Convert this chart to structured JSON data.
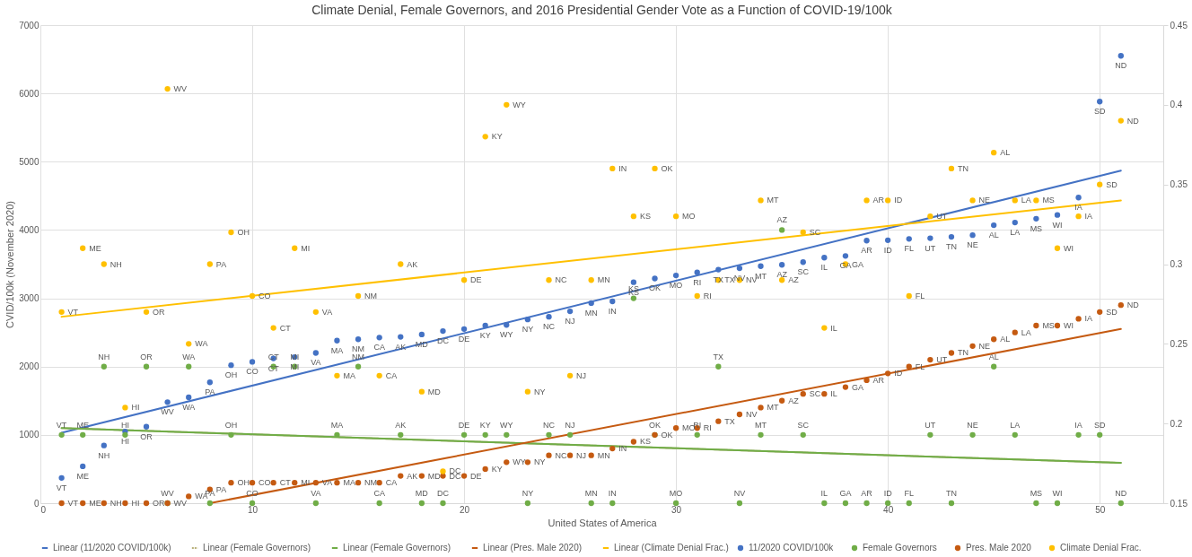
{
  "chart_data": {
    "type": "scatter",
    "title": "Climate Denial, Female Governors, and 2016 Presidential Gender Vote as a Function of COVID-19/100k",
    "xlabel": "United States of America",
    "ylabel": "CVID/100k (November 2020)",
    "x": [
      1,
      2,
      3,
      4,
      5,
      6,
      7,
      8,
      9,
      10,
      11,
      12,
      13,
      14,
      15,
      16,
      17,
      18,
      19,
      20,
      21,
      22,
      23,
      24,
      25,
      26,
      27,
      28,
      29,
      30,
      31,
      32,
      33,
      34,
      35,
      36,
      37,
      38,
      39,
      40,
      41,
      42,
      43,
      44,
      45,
      46,
      47,
      48,
      49,
      50,
      51
    ],
    "xlim": [
      0,
      53
    ],
    "xticks": [
      0,
      10,
      20,
      30,
      40,
      50
    ],
    "ylim": [
      0,
      7000
    ],
    "yticks": [
      0,
      1000,
      2000,
      3000,
      4000,
      5000,
      6000,
      7000
    ],
    "y2lim": [
      0.15,
      0.45
    ],
    "y2ticks": [
      0.15,
      0.2,
      0.25,
      0.3,
      0.35,
      0.4,
      0.45
    ],
    "grid": true,
    "legend": "bottom",
    "marker": "circle",
    "series": [
      {
        "name": "11/2020 COVID/100k",
        "color": "#4472c4",
        "values": [
          370,
          540,
          845,
          1050,
          1120,
          1480,
          1550,
          1770,
          2020,
          2070,
          2120,
          2140,
          2200,
          2380,
          2400,
          2425,
          2435,
          2470,
          2520,
          2550,
          2600,
          2610,
          2690,
          2730,
          2810,
          2930,
          2955,
          3235,
          3290,
          3335,
          3380,
          3420,
          3440,
          3470,
          3490,
          3530,
          3595,
          3620,
          3845,
          3850,
          3870,
          3880,
          3900,
          3925,
          4070,
          4110,
          4165,
          4220,
          4475,
          5880,
          6550
        ],
        "value_labels": [
          "VT",
          "ME",
          "NH",
          "HI",
          "OR",
          "WV",
          "WA",
          "PA",
          "OH",
          "CO",
          "CT",
          "MI",
          "VA",
          "MA",
          "NM",
          "CA",
          "AK",
          "MD",
          "DC",
          "DE",
          "KY",
          "WY",
          "NY",
          "NC",
          "NJ",
          "MN",
          "IN",
          "KS",
          "OK",
          "MO",
          "RI",
          "TX",
          "NV",
          "MT",
          "AZ",
          "SC",
          "IL",
          "GA",
          "AR",
          "ID",
          "FL",
          "UT",
          "TN",
          "NE",
          "AL",
          "LA",
          "MS",
          "WI",
          "IA",
          "SD",
          "ND"
        ]
      },
      {
        "name": "Female Governors",
        "color": "#70ad47",
        "values": [
          1000,
          1000,
          2000,
          1000,
          2000,
          0,
          2000,
          0,
          1000,
          0,
          2000,
          2000,
          0,
          1000,
          2000,
          0,
          1000,
          0,
          0,
          1000,
          1000,
          1000,
          0,
          1000,
          1000,
          0,
          0,
          3000,
          1000,
          0,
          1000,
          2000,
          0,
          1000,
          4000,
          1000,
          0,
          0,
          0,
          0,
          0,
          1000,
          0,
          1000,
          2000,
          1000,
          0,
          0,
          1000,
          1000,
          0
        ],
        "value_labels": [
          "VT",
          "ME",
          "NH",
          "HI",
          "OR",
          "WV",
          "WA",
          "PA",
          "OH",
          "CO",
          "CT",
          "MI",
          "VA",
          "MA",
          "NM",
          "CA",
          "AK",
          "MD",
          "DC",
          "DE",
          "KY",
          "WY",
          "NY",
          "NC",
          "NJ",
          "MN",
          "IN",
          "KS",
          "OK",
          "MO",
          "RI",
          "TX",
          "NV",
          "MT",
          "AZ",
          "SC",
          "IL",
          "GA",
          "AR",
          "ID",
          "FL",
          "UT",
          "TN",
          "NE",
          "AL",
          "LA",
          "MS",
          "WI",
          "IA",
          "SD",
          "ND"
        ]
      },
      {
        "name": "Pres. Male 2020",
        "color": "#c55a11",
        "values": [
          0,
          0,
          0,
          0,
          0,
          0,
          100,
          200,
          300,
          300,
          300,
          300,
          300,
          300,
          300,
          300,
          400,
          400,
          400,
          400,
          500,
          600,
          600,
          700,
          700,
          700,
          800,
          900,
          1000,
          1100,
          1100,
          1200,
          1300,
          1400,
          1500,
          1600,
          1600,
          1700,
          1800,
          1900,
          2000,
          2100,
          2200,
          2300,
          2400,
          2500,
          2600,
          2600,
          2700,
          2800,
          2900
        ],
        "value_labels": [
          "VT",
          "ME",
          "NH",
          "HI",
          "OR",
          "WV",
          "WA",
          "PA",
          "OH",
          "CO",
          "CT",
          "MI",
          "VA",
          "MA",
          "NM",
          "CA",
          "AK",
          "MD",
          "DC",
          "DE",
          "KY",
          "WY",
          "NY",
          "NC",
          "NJ",
          "MN",
          "IN",
          "KS",
          "OK",
          "MO",
          "RI",
          "TX",
          "NV",
          "MT",
          "AZ",
          "SC",
          "IL",
          "GA",
          "AR",
          "ID",
          "FL",
          "UT",
          "TN",
          "NE",
          "AL",
          "LA",
          "MS",
          "WI",
          "IA",
          "SD",
          "ND"
        ]
      },
      {
        "name": "Climate Denial Frac.",
        "color": "#ffc000",
        "axis": "y2",
        "values": [
          0.27,
          0.31,
          0.3,
          0.21,
          0.27,
          0.41,
          0.25,
          0.3,
          0.32,
          0.28,
          0.26,
          0.31,
          0.27,
          0.23,
          0.28,
          0.23,
          0.3,
          0.22,
          0.17,
          0.29,
          0.38,
          0.4,
          0.22,
          0.29,
          0.23,
          0.29,
          0.36,
          0.33,
          0.36,
          0.33,
          0.28,
          0.29,
          0.29,
          0.34,
          0.29,
          0.32,
          0.26,
          0.3,
          0.34,
          0.34,
          0.28,
          0.33,
          0.36,
          0.34,
          0.37,
          0.34,
          0.34,
          0.31,
          0.33,
          0.35,
          0.39
        ],
        "value_labels": [
          "VT",
          "ME",
          "NH",
          "HI",
          "OR",
          "WV",
          "WA",
          "PA",
          "OH",
          "CO",
          "CT",
          "MI",
          "VA",
          "MA",
          "NM",
          "CA",
          "AK",
          "MD",
          "DC",
          "DE",
          "KY",
          "WY",
          "NY",
          "NC",
          "NJ",
          "MN",
          "IN",
          "KS",
          "OK",
          "MO",
          "RI",
          "TX",
          "NV",
          "MT",
          "AZ",
          "SC",
          "IL",
          "GA",
          "AR",
          "ID",
          "FL",
          "UT",
          "TN",
          "NE",
          "AL",
          "LA",
          "MS",
          "WI",
          "IA",
          "SD",
          "ND"
        ]
      },
      {
        "name": "Linear (11/2020 COVID/100k)",
        "type": "line",
        "marker": "none",
        "color": "#4472c4",
        "x": [
          1,
          51
        ],
        "values": [
          1030,
          4870
        ]
      },
      {
        "name": "Linear (Female Governors)",
        "type": "line",
        "marker": "none",
        "line_style": "dotted",
        "color": "#b8b07a",
        "x": [
          1,
          51
        ],
        "values": [
          1100,
          590
        ]
      },
      {
        "name": "Linear (Female Governors)",
        "type": "line",
        "marker": "none",
        "color": "#70ad47",
        "x": [
          1,
          51
        ],
        "values": [
          1100,
          590
        ]
      },
      {
        "name": "Linear (Pres. Male 2020)",
        "type": "line",
        "marker": "none",
        "color": "#c55a11",
        "x": [
          8,
          51
        ],
        "values": [
          0,
          2550
        ]
      },
      {
        "name": "Linear (Climate Denial Frac.)",
        "type": "line",
        "marker": "none",
        "color": "#ffc000",
        "axis": "y2",
        "x": [
          1,
          51
        ],
        "values": [
          0.267,
          0.34
        ]
      }
    ]
  }
}
